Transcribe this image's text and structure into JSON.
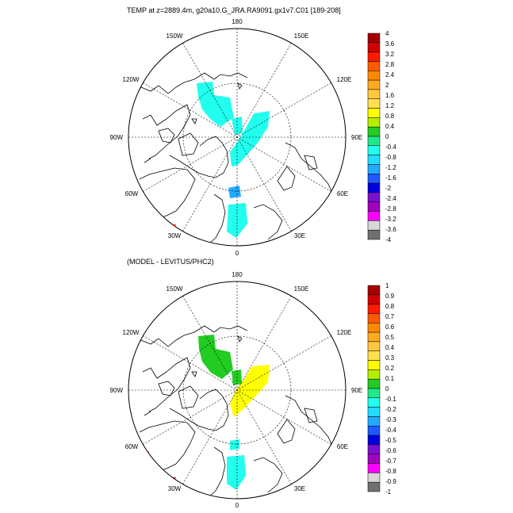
{
  "top": {
    "title": "TEMP at z=2889.4m, g20a10.G_JRA.RA9091.gx1v7.C01 [189-208]",
    "lon_labels": {
      "n": "180",
      "s": "0",
      "w": "90W",
      "e": "90E",
      "nw1": "150W",
      "nw2": "120W",
      "sw1": "60W",
      "sw2": "30W",
      "ne1": "150E",
      "ne2": "120E",
      "se1": "60E",
      "se2": "30E"
    },
    "colorbar": {
      "labels": [
        "4",
        "3.6",
        "3.2",
        "2.8",
        "2.4",
        "2",
        "1.6",
        "1.2",
        "0.8",
        "0.4",
        "0",
        "-0.4",
        "-0.8",
        "-1.2",
        "-1.6",
        "-2",
        "-2.4",
        "-2.8",
        "-3.2",
        "-3.6",
        "-4"
      ],
      "colors": [
        "#a50000",
        "#d20000",
        "#ff1a00",
        "#ff5a00",
        "#ff8a00",
        "#ffaa22",
        "#ffc840",
        "#ffe050",
        "#ffff00",
        "#b8ee00",
        "#22cc22",
        "#22e888",
        "#22ffee",
        "#22ddff",
        "#22aaff",
        "#1e5aff",
        "#0000e0",
        "#7a10d0",
        "#a000c0",
        "#ff00ff",
        "#d8d8d8",
        "#707070"
      ]
    }
  },
  "bottom": {
    "title": "(MODEL - LEVITUS/PHC2)",
    "lon_labels": {
      "n": "180",
      "s": "0",
      "w": "90W",
      "e": "90E",
      "nw1": "150W",
      "nw2": "120W",
      "sw1": "60W",
      "sw2": "30W",
      "ne1": "150E",
      "ne2": "120E",
      "se1": "60E",
      "se2": "30E"
    },
    "colorbar": {
      "labels": [
        "1",
        "0.9",
        "0.8",
        "0.7",
        "0.6",
        "0.5",
        "0.4",
        "0.3",
        "0.2",
        "0.1",
        "0",
        "-0.1",
        "-0.2",
        "-0.3",
        "-0.4",
        "-0.5",
        "-0.6",
        "-0.7",
        "-0.8",
        "-0.9",
        "-1"
      ],
      "colors": [
        "#a50000",
        "#d20000",
        "#ff1a00",
        "#ff5a00",
        "#ff8a00",
        "#ffaa22",
        "#ffc840",
        "#ffe050",
        "#ffff00",
        "#b8ee00",
        "#22cc22",
        "#22e888",
        "#22ffee",
        "#22ddff",
        "#22aaff",
        "#1e5aff",
        "#0000e0",
        "#7a10d0",
        "#a000c0",
        "#ff00ff",
        "#d8d8d8",
        "#707070"
      ]
    }
  }
}
